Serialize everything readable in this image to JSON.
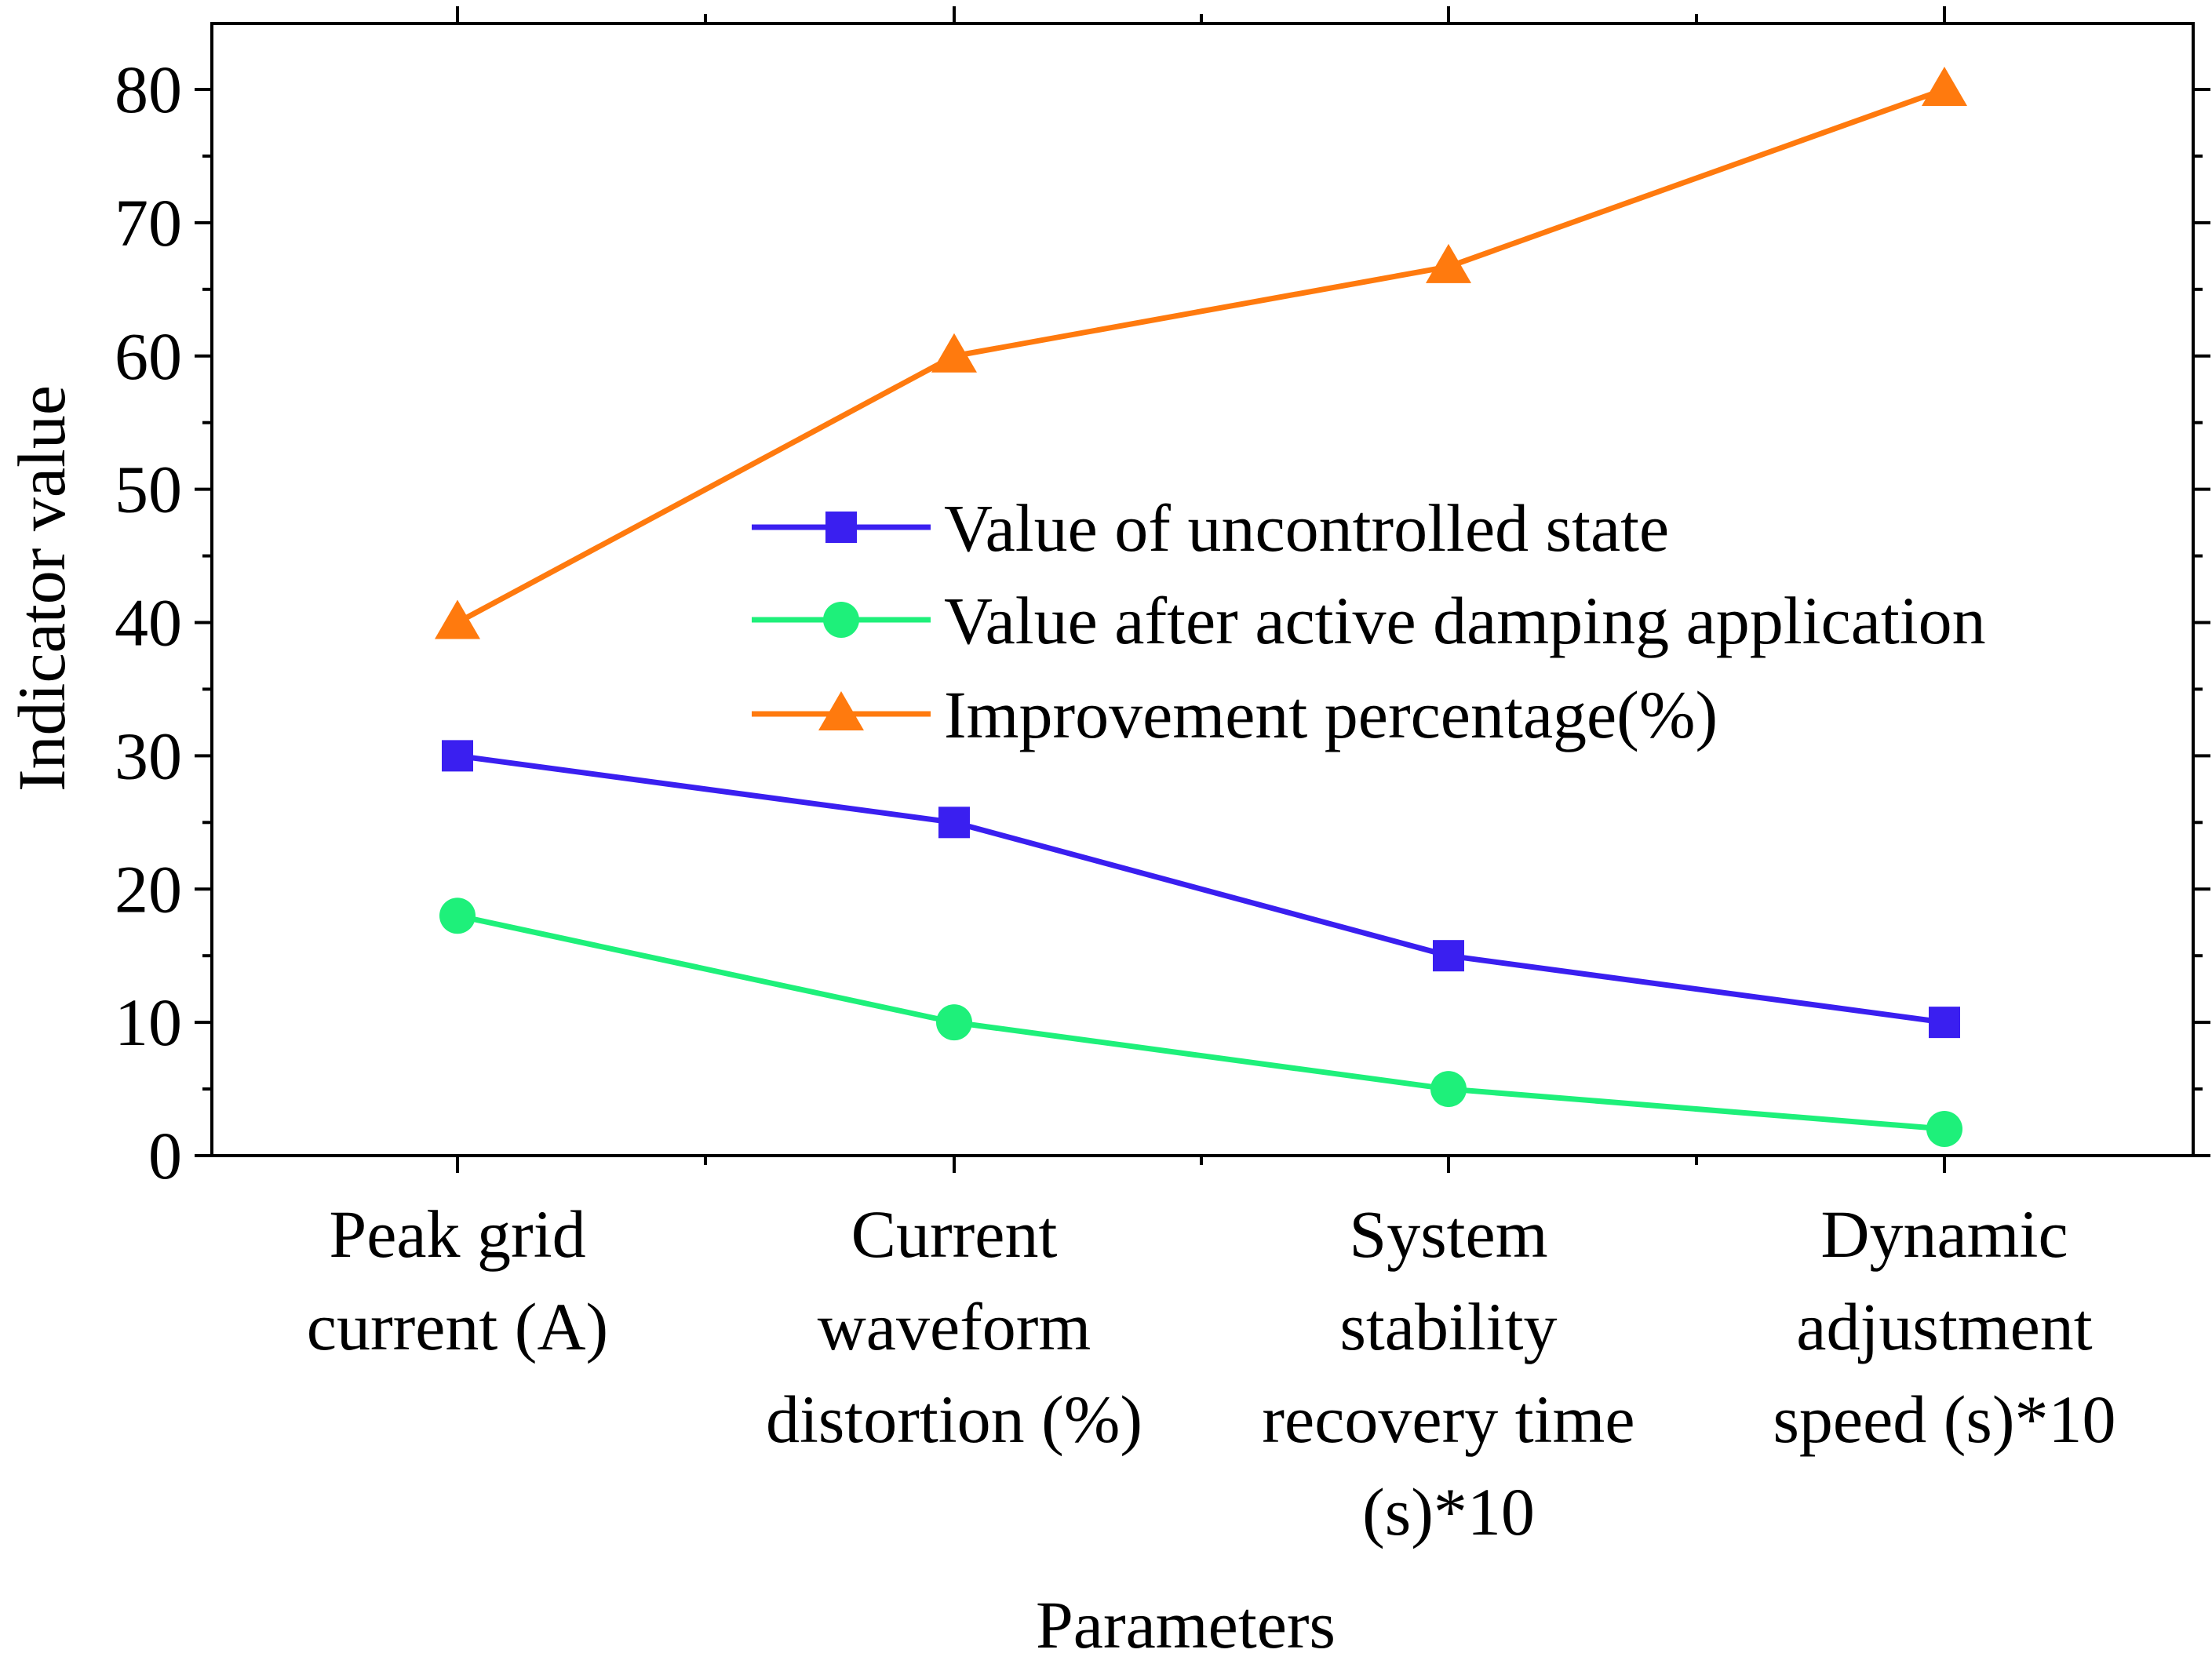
{
  "chart_data": {
    "type": "line",
    "title": "",
    "xlabel": "Parameters",
    "ylabel": "Indicator value",
    "ylim": [
      0,
      85
    ],
    "yticks": [
      0,
      10,
      20,
      30,
      40,
      50,
      60,
      70,
      80
    ],
    "categories": [
      [
        "Peak grid",
        "current (A)"
      ],
      [
        "Current",
        "waveform",
        "distortion (%)"
      ],
      [
        "System",
        "stability",
        "recovery time",
        "(s)*10"
      ],
      [
        "Dynamic",
        "adjustment",
        "speed (s)*10"
      ]
    ],
    "series": [
      {
        "name": "Value of uncontrolled state",
        "marker": "square",
        "color": "#3a1ff0",
        "values": [
          30,
          25,
          15,
          10
        ]
      },
      {
        "name": "Value after active damping application",
        "marker": "circle",
        "color": "#1ef07a",
        "values": [
          18,
          10,
          5,
          2
        ]
      },
      {
        "name": "Improvement percentage(%)",
        "marker": "triangle",
        "color": "#ff7a0e",
        "values": [
          40,
          60,
          66.7,
          80
        ]
      }
    ],
    "legend_position": "center"
  }
}
